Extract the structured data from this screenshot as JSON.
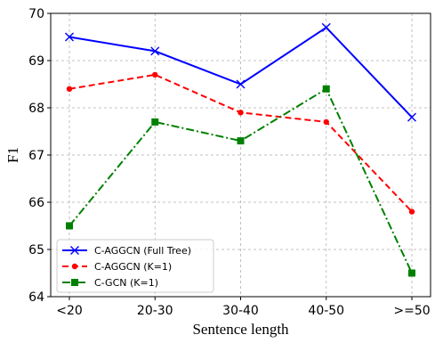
{
  "chart_data": {
    "type": "line",
    "categories": [
      "<20",
      "20-30",
      "30-40",
      "40-50",
      ">=50"
    ],
    "xlabel": "Sentence length",
    "ylabel": "F1",
    "ylim": [
      64,
      70
    ],
    "yticks": [
      64,
      65,
      66,
      67,
      68,
      69,
      70
    ],
    "grid": true,
    "legend_position": "lower-left",
    "series": [
      {
        "name": "C-AGGCN (Full Tree)",
        "values": [
          69.5,
          69.2,
          68.5,
          69.7,
          67.8
        ],
        "color": "#0000ff",
        "line_style": "solid",
        "marker": "x"
      },
      {
        "name": "C-AGGCN (K=1)",
        "values": [
          68.4,
          68.7,
          67.9,
          67.7,
          65.8
        ],
        "color": "#ff0000",
        "line_style": "dashed",
        "marker": "circle"
      },
      {
        "name": "C-GCN (K=1)",
        "values": [
          65.5,
          67.7,
          67.3,
          68.4,
          64.5
        ],
        "color": "#008000",
        "line_style": "dashdot",
        "marker": "square"
      }
    ]
  }
}
